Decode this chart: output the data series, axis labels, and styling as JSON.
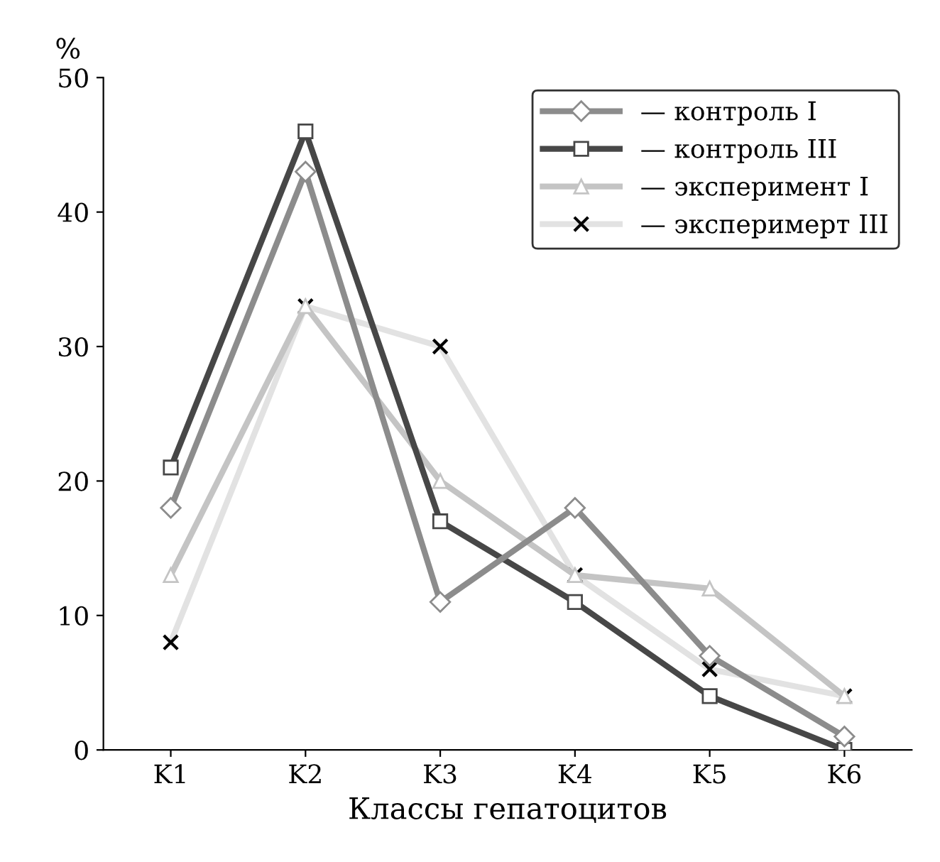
{
  "chart_data": {
    "type": "line",
    "ylabel": "%",
    "xlabel": "Классы гепатоцитов",
    "categories": [
      "K1",
      "K2",
      "K3",
      "K4",
      "K5",
      "K6"
    ],
    "ylim": [
      0,
      50
    ],
    "yticks": [
      0,
      10,
      20,
      30,
      40,
      50
    ],
    "grid": false,
    "legend": "top right",
    "series": [
      {
        "name": "— контроль I",
        "color": "#8c8c8c",
        "marker": "diamond",
        "values": [
          18,
          43,
          11,
          18,
          7,
          1
        ]
      },
      {
        "name": "— контроль III",
        "color": "#474747",
        "marker": "square",
        "values": [
          21,
          46,
          17,
          11,
          4,
          0
        ]
      },
      {
        "name": "— эксперимент I",
        "color": "#c4c4c4",
        "marker": "triangle",
        "values": [
          13,
          33,
          20,
          13,
          12,
          4
        ]
      },
      {
        "name": "— эксперимерт III",
        "color": "#e2e2e2",
        "marker": "cross",
        "values": [
          8,
          33,
          30,
          13,
          6,
          4
        ]
      }
    ]
  }
}
